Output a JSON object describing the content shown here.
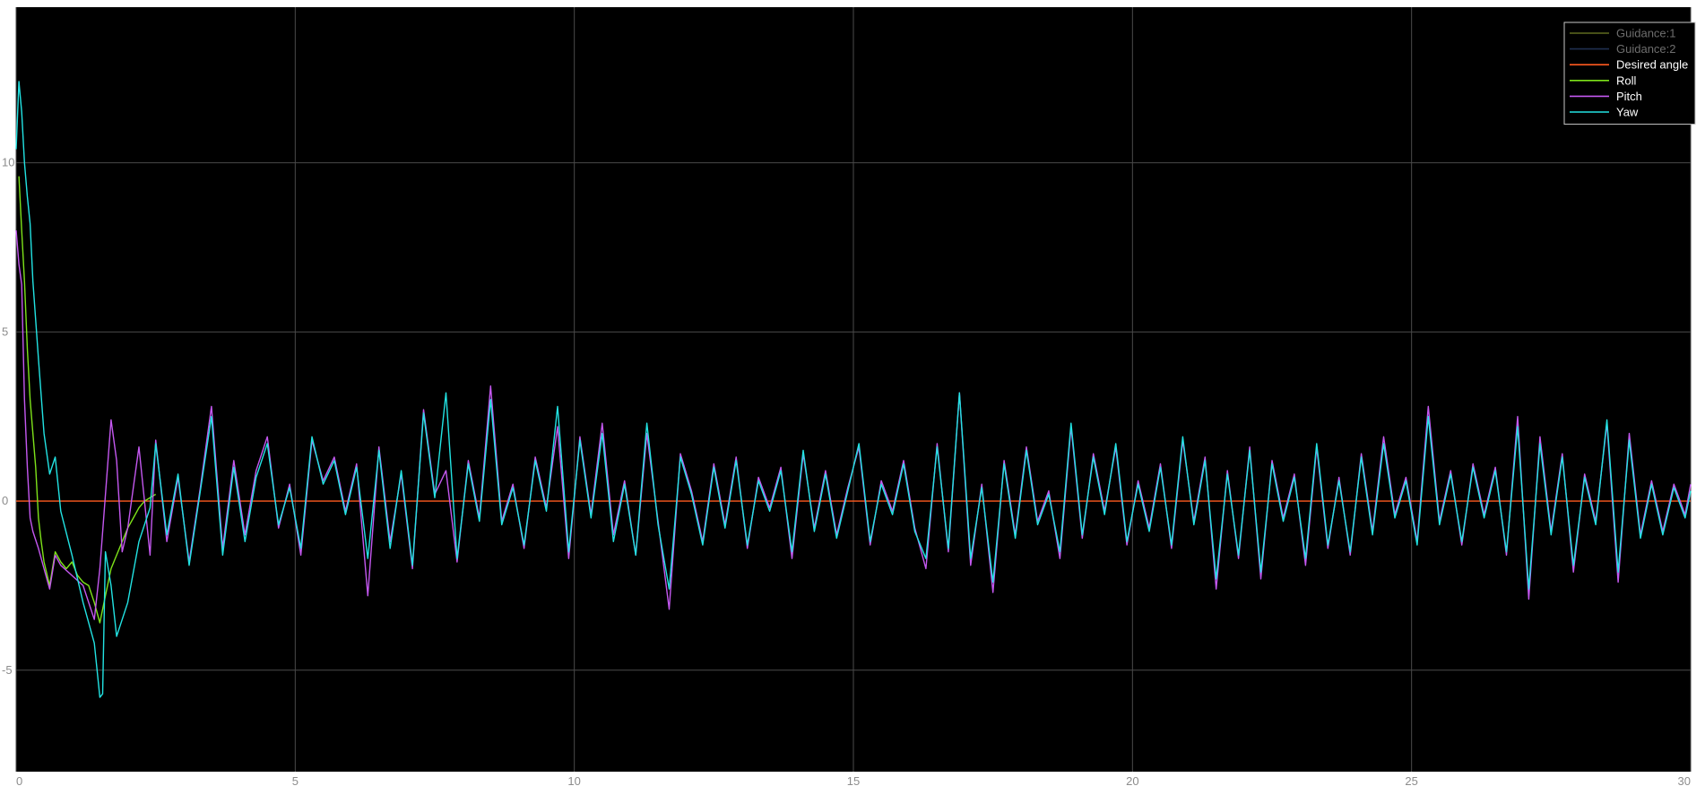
{
  "chart_data": {
    "type": "line",
    "title": "",
    "xlabel": "",
    "ylabel": "",
    "xlim": [
      0,
      30
    ],
    "ylim": [
      -8,
      14.6
    ],
    "xticks": [
      0,
      5,
      10,
      15,
      20,
      25,
      30
    ],
    "yticks": [
      -5,
      0,
      5,
      10
    ],
    "grid": true,
    "legend_position": "top-right",
    "background": "#000000",
    "grid_color": "#4a4a4a",
    "tick_color": "#8c8c8c",
    "series": [
      {
        "name": "Guidance:1",
        "color": "#5f6b1f",
        "legend_text_color": "#6e6e6e",
        "values": []
      },
      {
        "name": "Guidance:2",
        "color": "#1f2f4f",
        "legend_text_color": "#6e6e6e",
        "values": []
      },
      {
        "name": "Desired angle",
        "color": "#ff5a1f",
        "legend_text_color": "#ffffff",
        "x": [
          0,
          30
        ],
        "y": [
          0,
          0
        ]
      },
      {
        "name": "Roll",
        "color": "#7ee21a",
        "legend_text_color": "#ffffff",
        "x": [
          0.05,
          0.1,
          0.15,
          0.2,
          0.25,
          0.3,
          0.35,
          0.4,
          0.45,
          0.5,
          0.6,
          0.7,
          0.8,
          0.9,
          1.0,
          1.1,
          1.2,
          1.3,
          1.4,
          1.5,
          1.6,
          1.7,
          1.8,
          1.9,
          2.0,
          2.1,
          2.2,
          2.3,
          2.4,
          2.5
        ],
        "y": [
          9.6,
          8.0,
          6.5,
          4.5,
          3.0,
          2.0,
          1.0,
          -0.5,
          -1.2,
          -1.8,
          -2.5,
          -1.5,
          -1.8,
          -2.0,
          -1.8,
          -2.2,
          -2.4,
          -2.5,
          -3.0,
          -3.6,
          -2.8,
          -2.0,
          -1.6,
          -1.2,
          -0.8,
          -0.5,
          -0.2,
          0.0,
          0.1,
          0.2
        ]
      },
      {
        "name": "Pitch",
        "color": "#c458f0",
        "legend_text_color": "#ffffff",
        "x": [
          0,
          0.05,
          0.1,
          0.15,
          0.2,
          0.25,
          0.3,
          0.4,
          0.5,
          0.6,
          0.7,
          0.8,
          1.0,
          1.2,
          1.4,
          1.5,
          1.7,
          1.8,
          1.9,
          2.0,
          2.2,
          2.4,
          2.5,
          2.7,
          2.9,
          3.1,
          3.3,
          3.5,
          3.7,
          3.9,
          4.1,
          4.3,
          4.5,
          4.7,
          4.9,
          5.1,
          5.3,
          5.5,
          5.7,
          5.9,
          6.1,
          6.3,
          6.5,
          6.7,
          6.9,
          7.1,
          7.3,
          7.5,
          7.7,
          7.9,
          8.1,
          8.3,
          8.5,
          8.7,
          8.9,
          9.1,
          9.3,
          9.5,
          9.7,
          9.9,
          10.1,
          10.3,
          10.5,
          10.7,
          10.9,
          11.1,
          11.3,
          11.5,
          11.7,
          11.9,
          12.1,
          12.3,
          12.5,
          12.7,
          12.9,
          13.1,
          13.3,
          13.5,
          13.7,
          13.9,
          14.1,
          14.3,
          14.5,
          14.7,
          14.9,
          15.1,
          15.3,
          15.5,
          15.7,
          15.9,
          16.1,
          16.3,
          16.5,
          16.7,
          16.9,
          17.1,
          17.3,
          17.5,
          17.7,
          17.9,
          18.1,
          18.3,
          18.5,
          18.7,
          18.9,
          19.1,
          19.3,
          19.5,
          19.7,
          19.9,
          20.1,
          20.3,
          20.5,
          20.7,
          20.9,
          21.1,
          21.3,
          21.5,
          21.7,
          21.9,
          22.1,
          22.3,
          22.5,
          22.7,
          22.9,
          23.1,
          23.3,
          23.5,
          23.7,
          23.9,
          24.1,
          24.3,
          24.5,
          24.7,
          24.9,
          25.1,
          25.3,
          25.5,
          25.7,
          25.9,
          26.1,
          26.3,
          26.5,
          26.7,
          26.9,
          27.1,
          27.3,
          27.5,
          27.7,
          27.9,
          28.1,
          28.3,
          28.5,
          28.7,
          28.9,
          29.1,
          29.3,
          29.5,
          29.7,
          29.9,
          30.0
        ],
        "y": [
          8.0,
          7.0,
          6.4,
          3.0,
          1.0,
          -0.5,
          -0.9,
          -1.4,
          -2.0,
          -2.6,
          -1.6,
          -1.9,
          -2.2,
          -2.5,
          -3.5,
          -2.0,
          2.4,
          1.2,
          -1.5,
          -0.8,
          1.6,
          -1.6,
          1.8,
          -1.2,
          0.7,
          -1.8,
          0.4,
          2.8,
          -1.4,
          1.2,
          -1.0,
          0.9,
          1.9,
          -0.8,
          0.5,
          -1.6,
          1.8,
          0.6,
          1.3,
          -0.3,
          1.1,
          -2.8,
          1.6,
          -1.2,
          0.8,
          -2.0,
          2.7,
          0.2,
          0.9,
          -1.8,
          1.2,
          -0.5,
          3.4,
          -0.6,
          0.5,
          -1.4,
          1.3,
          -0.2,
          2.2,
          -1.7,
          1.9,
          -0.4,
          2.3,
          -1.0,
          0.6,
          -1.6,
          2.0,
          -0.6,
          -3.2,
          1.4,
          0.3,
          -1.2,
          1.1,
          -0.7,
          1.3,
          -1.4,
          0.7,
          -0.2,
          1.0,
          -1.7,
          1.4,
          -0.8,
          0.9,
          -1.0,
          0.4,
          1.6,
          -1.3,
          0.6,
          -0.3,
          1.2,
          -0.8,
          -2.0,
          1.7,
          -1.5,
          3.2,
          -1.9,
          0.5,
          -2.7,
          1.2,
          -1.0,
          1.6,
          -0.6,
          0.3,
          -1.7,
          2.2,
          -1.1,
          1.4,
          -0.3,
          1.6,
          -1.3,
          0.6,
          -0.8,
          1.1,
          -1.4,
          1.8,
          -0.6,
          1.3,
          -2.6,
          0.9,
          -1.7,
          1.6,
          -2.3,
          1.2,
          -0.5,
          0.8,
          -1.9,
          1.6,
          -1.4,
          0.7,
          -1.6,
          1.4,
          -0.9,
          1.9,
          -0.4,
          0.7,
          -1.2,
          2.8,
          -0.6,
          0.9,
          -1.3,
          1.1,
          -0.4,
          1.0,
          -1.6,
          2.5,
          -2.9,
          1.9,
          -0.9,
          1.4,
          -2.1,
          0.8,
          -0.6,
          2.3,
          -2.4,
          2.0,
          -1.0,
          0.6,
          -0.9,
          0.5,
          -0.4,
          0.5
        ]
      },
      {
        "name": "Yaw",
        "color": "#22e3e3",
        "legend_text_color": "#ffffff",
        "x": [
          0,
          0.05,
          0.1,
          0.15,
          0.2,
          0.25,
          0.3,
          0.4,
          0.5,
          0.6,
          0.7,
          0.8,
          1.0,
          1.2,
          1.4,
          1.5,
          1.55,
          1.6,
          1.7,
          1.8,
          1.9,
          2.0,
          2.2,
          2.4,
          2.5,
          2.7,
          2.9,
          3.1,
          3.3,
          3.5,
          3.7,
          3.9,
          4.1,
          4.3,
          4.5,
          4.7,
          4.9,
          5.1,
          5.3,
          5.5,
          5.7,
          5.9,
          6.1,
          6.3,
          6.5,
          6.7,
          6.9,
          7.1,
          7.3,
          7.5,
          7.7,
          7.9,
          8.1,
          8.3,
          8.5,
          8.7,
          8.9,
          9.1,
          9.3,
          9.5,
          9.7,
          9.9,
          10.1,
          10.3,
          10.5,
          10.7,
          10.9,
          11.1,
          11.3,
          11.5,
          11.7,
          11.9,
          12.1,
          12.3,
          12.5,
          12.7,
          12.9,
          13.1,
          13.3,
          13.5,
          13.7,
          13.9,
          14.1,
          14.3,
          14.5,
          14.7,
          14.9,
          15.1,
          15.3,
          15.5,
          15.7,
          15.9,
          16.1,
          16.3,
          16.5,
          16.7,
          16.9,
          17.1,
          17.3,
          17.5,
          17.7,
          17.9,
          18.1,
          18.3,
          18.5,
          18.7,
          18.9,
          19.1,
          19.3,
          19.5,
          19.7,
          19.9,
          20.1,
          20.3,
          20.5,
          20.7,
          20.9,
          21.1,
          21.3,
          21.5,
          21.7,
          21.9,
          22.1,
          22.3,
          22.5,
          22.7,
          22.9,
          23.1,
          23.3,
          23.5,
          23.7,
          23.9,
          24.1,
          24.3,
          24.5,
          24.7,
          24.9,
          25.1,
          25.3,
          25.5,
          25.7,
          25.9,
          26.1,
          26.3,
          26.5,
          26.7,
          26.9,
          27.1,
          27.3,
          27.5,
          27.7,
          27.9,
          28.1,
          28.3,
          28.5,
          28.7,
          28.9,
          29.1,
          29.3,
          29.5,
          29.7,
          29.9,
          30.0
        ],
        "y": [
          10.4,
          12.4,
          11.5,
          10.0,
          9.0,
          8.2,
          6.5,
          4.2,
          2.0,
          0.8,
          1.3,
          -0.3,
          -1.6,
          -3.0,
          -4.2,
          -5.8,
          -5.7,
          -1.5,
          -2.5,
          -4.0,
          -3.5,
          -3.0,
          -1.2,
          -0.2,
          1.7,
          -1.0,
          0.8,
          -1.9,
          0.3,
          2.5,
          -1.6,
          1.0,
          -1.2,
          0.7,
          1.7,
          -0.7,
          0.4,
          -1.4,
          1.9,
          0.5,
          1.2,
          -0.4,
          1.0,
          -1.7,
          1.5,
          -1.4,
          0.9,
          -1.9,
          2.6,
          0.1,
          3.2,
          -1.7,
          1.1,
          -0.6,
          3.0,
          -0.7,
          0.4,
          -1.3,
          1.2,
          -0.3,
          2.8,
          -1.5,
          1.8,
          -0.5,
          2.0,
          -1.2,
          0.5,
          -1.6,
          2.3,
          -0.7,
          -2.6,
          1.3,
          0.2,
          -1.3,
          1.0,
          -0.8,
          1.2,
          -1.3,
          0.6,
          -0.3,
          0.9,
          -1.5,
          1.5,
          -0.9,
          0.8,
          -1.1,
          0.3,
          1.7,
          -1.2,
          0.5,
          -0.4,
          1.1,
          -0.9,
          -1.7,
          1.6,
          -1.4,
          3.2,
          -1.7,
          0.4,
          -2.4,
          1.1,
          -1.1,
          1.5,
          -0.7,
          0.2,
          -1.5,
          2.3,
          -1.0,
          1.3,
          -0.4,
          1.7,
          -1.2,
          0.5,
          -0.9,
          1.0,
          -1.3,
          1.9,
          -0.7,
          1.2,
          -2.3,
          0.8,
          -1.6,
          1.5,
          -2.1,
          1.1,
          -0.6,
          0.7,
          -1.7,
          1.7,
          -1.3,
          0.6,
          -1.5,
          1.3,
          -1.0,
          1.7,
          -0.5,
          0.6,
          -1.3,
          2.5,
          -0.7,
          0.8,
          -1.2,
          1.0,
          -0.5,
          0.9,
          -1.5,
          2.2,
          -2.6,
          1.7,
          -1.0,
          1.3,
          -1.9,
          0.7,
          -0.7,
          2.4,
          -2.1,
          1.8,
          -1.1,
          0.5,
          -1.0,
          0.4,
          -0.5,
          0.3
        ]
      }
    ]
  }
}
